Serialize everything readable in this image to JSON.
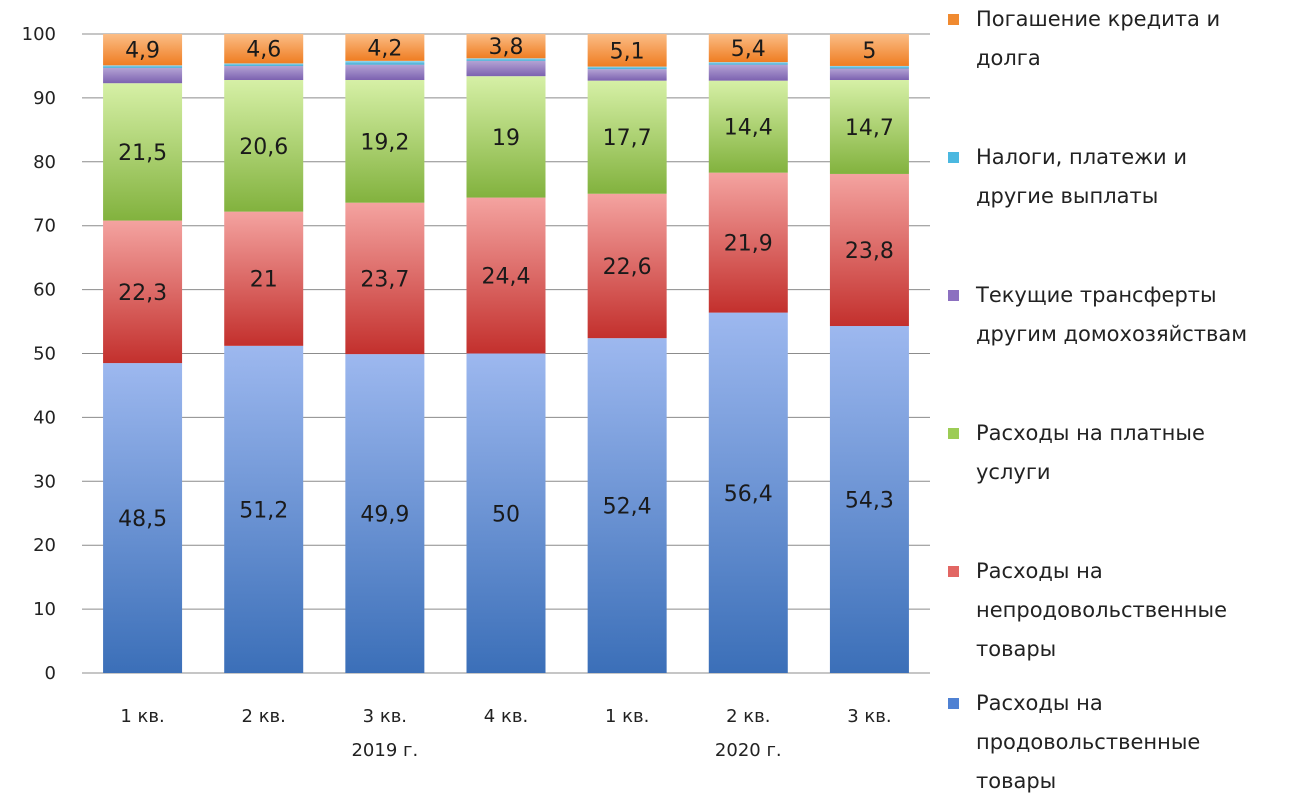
{
  "chart_data": {
    "type": "bar",
    "stacked": true,
    "categories": [
      "1 кв.",
      "2 кв.",
      "3 кв.",
      "4 кв.",
      "1 кв.",
      "2 кв.",
      "3 кв."
    ],
    "year_labels": [
      {
        "label": "2019 г.",
        "under_category_index": 2
      },
      {
        "label": "2020 г.",
        "under_category_index": 5
      }
    ],
    "ylim": [
      0,
      100
    ],
    "yticks": [
      0,
      10,
      20,
      30,
      40,
      50,
      60,
      70,
      80,
      90,
      100
    ],
    "grid": true,
    "legend_position": "right",
    "series": [
      {
        "name": " Расходы на продовольственные товары",
        "legend_lines": [
          " Расходы на",
          "продовольственные",
          "товары"
        ],
        "values": [
          48.5,
          51.2,
          49.9,
          50,
          52.4,
          56.4,
          54.3
        ],
        "labels": [
          "48,5",
          "51,2",
          "49,9",
          "50",
          "52,4",
          "56,4",
          "54,3"
        ],
        "color_top": "#9db8ef",
        "color_bottom": "#3b6fb8",
        "swatch": "#4f81d3"
      },
      {
        "name": "Расходы на непродовольственные товары",
        "legend_lines": [
          "Расходы на",
          "непродовольственные",
          "товары"
        ],
        "values": [
          22.3,
          21,
          23.7,
          24.4,
          22.6,
          21.9,
          23.8
        ],
        "labels": [
          "22,3",
          "21",
          "23,7",
          "24,4",
          "22,6",
          "21,9",
          "23,8"
        ],
        "color_top": "#f4a3a0",
        "color_bottom": "#c3302d",
        "swatch": "#e26663"
      },
      {
        "name": "Расходы на  платные услуги",
        "legend_lines": [
          "Расходы на  платные",
          "услуги"
        ],
        "values": [
          21.5,
          20.6,
          19.2,
          19,
          17.7,
          14.4,
          14.7
        ],
        "labels": [
          "21,5",
          "20,6",
          "19,2",
          "19",
          "17,7",
          "14,4",
          "14,7"
        ],
        "color_top": "#d6f0a6",
        "color_bottom": "#82b23e",
        "swatch": "#9ccc55"
      },
      {
        "name": "Текущие трансферты другим домохозяйствам",
        "legend_lines": [
          "Текущие трансферты",
          "другим домохозяйствам"
        ],
        "values": [
          2.4,
          2.2,
          2.4,
          2.4,
          1.8,
          2.5,
          1.8
        ],
        "labels": [
          "",
          "",
          "",
          "",
          "",
          "",
          ""
        ],
        "color_top": "#b4a3d4",
        "color_bottom": "#7c62b0",
        "swatch": "#8c70c0"
      },
      {
        "name": "Налоги, платежи и другие выплаты",
        "legend_lines": [
          "Налоги, платежи и",
          "другие выплаты"
        ],
        "values": [
          0.4,
          0.4,
          0.6,
          0.4,
          0.4,
          0.4,
          0.4
        ],
        "labels": [
          "",
          "",
          "",
          "",
          "",
          "",
          ""
        ],
        "color_top": "#9fdcf0",
        "color_bottom": "#3aa9d2",
        "swatch": "#4bb8e0"
      },
      {
        "name": "Погашение кредита и долга",
        "legend_lines": [
          "Погашение кредита и",
          "долга"
        ],
        "values": [
          4.9,
          4.6,
          4.2,
          3.8,
          5.1,
          5.4,
          5
        ],
        "labels": [
          "4,9",
          "4,6",
          "4,2",
          "3,8",
          "5,1",
          "5,4",
          "5"
        ],
        "color_top": "#fbbd86",
        "color_bottom": "#ef7d22",
        "swatch": "#f08a30"
      }
    ]
  }
}
